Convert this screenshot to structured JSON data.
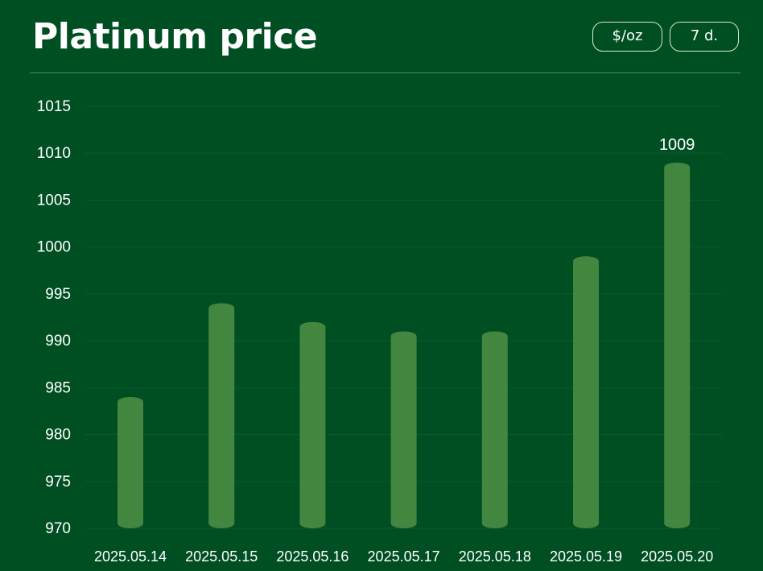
{
  "header": {
    "title": "Platinum price",
    "unit_label": "$/oz",
    "range_label": "7 d."
  },
  "colors": {
    "background": "#004f23",
    "bar": "#428640",
    "text": "#ffffff",
    "pill_border": "#d8e6da",
    "gridline": "#0a5a2c"
  },
  "chart_data": {
    "type": "bar",
    "title": "Platinum price",
    "xlabel": "",
    "ylabel": "",
    "categories": [
      "2025.05.14",
      "2025.05.15",
      "2025.05.16",
      "2025.05.17",
      "2025.05.18",
      "2025.05.19",
      "2025.05.20"
    ],
    "values": [
      984,
      994,
      992,
      991,
      991,
      999,
      1009
    ],
    "ylim": [
      970,
      1015
    ],
    "yticks": [
      970,
      975,
      980,
      985,
      990,
      995,
      1000,
      1005,
      1010,
      1015
    ],
    "grid": true,
    "legend": "none",
    "annotations": [
      {
        "category": "2025.05.20",
        "text": "1009"
      }
    ]
  }
}
